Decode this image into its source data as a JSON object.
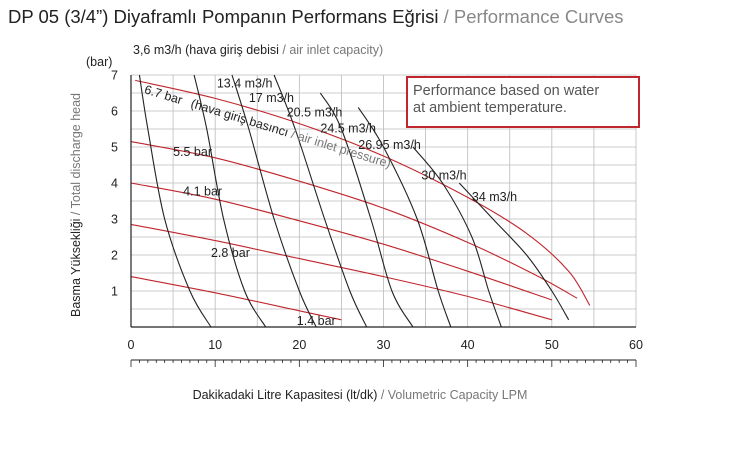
{
  "title": {
    "main": "DP 05 (3/4”) Diyaframlı Pompanın Performans Eğrisi",
    "separator": " / ",
    "sub": "Performance Curves"
  },
  "note": {
    "line1": "Performance based on water",
    "line2": "at ambient temperature.",
    "border_color": "#c0262d"
  },
  "x_axis": {
    "label_main": "Dakikadaki Litre Kapasitesi (lt/dk)",
    "label_sep": " / ",
    "label_sub": "Volumetric Capacity LPM",
    "ticks": [
      0,
      10,
      20,
      30,
      40,
      50,
      60
    ],
    "range": [
      0,
      60
    ]
  },
  "y_axis": {
    "unit": "(bar)",
    "label_main": "Basma Yüksekliği",
    "label_sep": " / ",
    "label_sub": "Total discharge head",
    "ticks": [
      1,
      2,
      3,
      4,
      5,
      6,
      7
    ],
    "range": [
      0,
      7
    ]
  },
  "air_axis": {
    "label_main": "3,6 m3/h (hava giriş debisi",
    "label_sep": " / ",
    "label_sub": "air inlet capacity)"
  },
  "pressure_axis": {
    "label_main": "(hava giriş basıncı",
    "label_sep": " / ",
    "label_sub": "air inlet pressure)"
  },
  "chart_data": {
    "type": "line",
    "xlabel": "Dakikadaki Litre Kapasitesi (lt/dk) / Volumetric Capacity LPM",
    "ylabel": "Basma Yüksekliği / Total discharge head (bar)",
    "xlim": [
      0,
      60
    ],
    "ylim": [
      0,
      7
    ],
    "grid": true,
    "air_pressure_curves": {
      "color": "#c0262d",
      "series": [
        {
          "name": "6.7 bar",
          "x": [
            0.5,
            10,
            20,
            30,
            40,
            47,
            52,
            54.5
          ],
          "y": [
            6.85,
            6.35,
            5.65,
            4.75,
            3.6,
            2.6,
            1.55,
            0.6
          ]
        },
        {
          "name": "5.5 bar",
          "x": [
            0,
            10,
            20,
            30,
            40,
            48,
            53
          ],
          "y": [
            5.15,
            4.7,
            4.05,
            3.3,
            2.35,
            1.45,
            0.8
          ]
        },
        {
          "name": "4.1 bar",
          "x": [
            0,
            10,
            20,
            30,
            40,
            50
          ],
          "y": [
            4.0,
            3.55,
            2.95,
            2.3,
            1.55,
            0.75
          ]
        },
        {
          "name": "2.8 bar",
          "x": [
            0,
            10,
            20,
            30,
            40,
            50
          ],
          "y": [
            2.85,
            2.4,
            1.9,
            1.4,
            0.85,
            0.2
          ]
        },
        {
          "name": "1.4 bar",
          "x": [
            0,
            10,
            20,
            25
          ],
          "y": [
            1.4,
            0.95,
            0.45,
            0.2
          ]
        }
      ]
    },
    "air_consumption_curves": {
      "color": "#222222",
      "series": [
        {
          "name": "3,6 m3/h",
          "x": [
            1,
            2,
            4,
            7,
            9.5
          ],
          "y": [
            7.0,
            5.5,
            3.0,
            1.0,
            0.0
          ]
        },
        {
          "name": "13.4 m3/h",
          "x": [
            7.5,
            9,
            11,
            13.5,
            16
          ],
          "y": [
            7.0,
            5.5,
            3.0,
            1.0,
            0.0
          ]
        },
        {
          "name": "17 m3/h",
          "x": [
            12,
            14,
            17,
            20,
            22
          ],
          "y": [
            7.0,
            5.5,
            3.0,
            1.0,
            0.0
          ]
        },
        {
          "name": "20.5 m3/h",
          "x": [
            17,
            19.5,
            23,
            26,
            28
          ],
          "y": [
            7.0,
            5.5,
            3.0,
            1.0,
            0.0
          ]
        },
        {
          "name": "24.5 m3/h",
          "x": [
            22.5,
            25,
            28.5,
            31,
            33.5
          ],
          "y": [
            6.5,
            5.5,
            3.0,
            1.0,
            0.0
          ]
        },
        {
          "name": "26.95 m3/h",
          "x": [
            27,
            30,
            34,
            36.5,
            38
          ],
          "y": [
            6.1,
            5.0,
            3.0,
            1.0,
            0.0
          ]
        },
        {
          "name": "30 m3/h",
          "x": [
            33.5,
            37,
            40.5,
            42.5,
            44
          ],
          "y": [
            5.0,
            4.0,
            2.5,
            1.0,
            0.0
          ]
        },
        {
          "name": "34 m3/h",
          "x": [
            39,
            43,
            47,
            50,
            52
          ],
          "y": [
            4.0,
            3.0,
            2.0,
            1.0,
            0.2
          ]
        }
      ]
    },
    "annotations": [
      {
        "text": "13.4 m3/h",
        "x": 10.2,
        "y": 6.65
      },
      {
        "text": "17 m3/h",
        "x": 14,
        "y": 6.25
      },
      {
        "text": "20.5 m3/h",
        "x": 18.5,
        "y": 5.85
      },
      {
        "text": "24.5 m3/h",
        "x": 22.5,
        "y": 5.4
      },
      {
        "text": "26.95 m3/h",
        "x": 27,
        "y": 4.95
      },
      {
        "text": "30 m3/h",
        "x": 34.5,
        "y": 4.1
      },
      {
        "text": "34 m3/h",
        "x": 40.5,
        "y": 3.5
      },
      {
        "text": "5.5 bar",
        "x": 5,
        "y": 4.75
      },
      {
        "text": "4.1 bar",
        "x": 6.2,
        "y": 3.65
      },
      {
        "text": "2.8 bar",
        "x": 9.5,
        "y": 1.95
      },
      {
        "text": "1.4 bar",
        "x": 19.7,
        "y": 0.05
      },
      {
        "text": "6.7 bar",
        "x": 1.5,
        "y": 6.5,
        "rotate": 17
      }
    ]
  }
}
